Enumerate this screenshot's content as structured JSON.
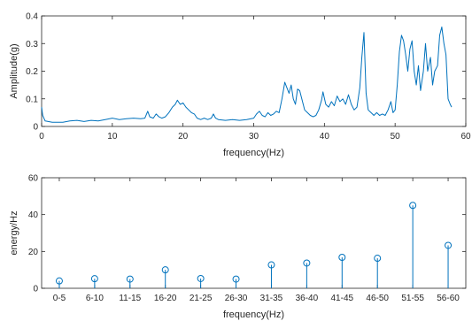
{
  "chart_data": [
    {
      "type": "line",
      "xlabel": "frequency(Hz)",
      "ylabel": "Amplitude(g)",
      "xlim": [
        0,
        60
      ],
      "ylim": [
        0,
        0.4
      ],
      "xticks": [
        0,
        10,
        20,
        30,
        40,
        50,
        60
      ],
      "yticks": [
        0,
        0.1,
        0.2,
        0.3,
        0.4
      ],
      "ytick_labels": [
        "0",
        "0.1",
        "0.2",
        "0.3",
        "0.4"
      ],
      "grid": false,
      "color": "#0072bd",
      "points": [
        [
          0.0,
          0.07
        ],
        [
          0.15,
          0.04
        ],
        [
          0.5,
          0.02
        ],
        [
          1.5,
          0.015
        ],
        [
          3,
          0.015
        ],
        [
          4,
          0.02
        ],
        [
          5,
          0.022
        ],
        [
          6,
          0.018
        ],
        [
          7,
          0.022
        ],
        [
          8,
          0.02
        ],
        [
          9,
          0.025
        ],
        [
          10,
          0.03
        ],
        [
          11,
          0.025
        ],
        [
          12,
          0.028
        ],
        [
          13,
          0.03
        ],
        [
          14,
          0.028
        ],
        [
          14.6,
          0.03
        ],
        [
          15.0,
          0.055
        ],
        [
          15.3,
          0.035
        ],
        [
          15.8,
          0.03
        ],
        [
          16.2,
          0.045
        ],
        [
          16.6,
          0.035
        ],
        [
          17.0,
          0.03
        ],
        [
          17.5,
          0.035
        ],
        [
          18.0,
          0.05
        ],
        [
          18.5,
          0.07
        ],
        [
          18.9,
          0.08
        ],
        [
          19.2,
          0.095
        ],
        [
          19.6,
          0.08
        ],
        [
          20.0,
          0.085
        ],
        [
          20.4,
          0.07
        ],
        [
          20.8,
          0.06
        ],
        [
          21.2,
          0.05
        ],
        [
          21.6,
          0.045
        ],
        [
          22.0,
          0.03
        ],
        [
          22.5,
          0.025
        ],
        [
          23.0,
          0.03
        ],
        [
          23.5,
          0.025
        ],
        [
          24.0,
          0.03
        ],
        [
          24.3,
          0.045
        ],
        [
          24.6,
          0.03
        ],
        [
          25.0,
          0.025
        ],
        [
          26.0,
          0.022
        ],
        [
          27.0,
          0.025
        ],
        [
          28.0,
          0.022
        ],
        [
          29.0,
          0.025
        ],
        [
          30.0,
          0.03
        ],
        [
          30.4,
          0.045
        ],
        [
          30.8,
          0.055
        ],
        [
          31.2,
          0.04
        ],
        [
          31.6,
          0.035
        ],
        [
          32.0,
          0.05
        ],
        [
          32.4,
          0.04
        ],
        [
          32.8,
          0.045
        ],
        [
          33.2,
          0.055
        ],
        [
          33.6,
          0.05
        ],
        [
          34.0,
          0.1
        ],
        [
          34.4,
          0.16
        ],
        [
          34.7,
          0.14
        ],
        [
          35.0,
          0.12
        ],
        [
          35.3,
          0.15
        ],
        [
          35.6,
          0.1
        ],
        [
          35.9,
          0.08
        ],
        [
          36.2,
          0.135
        ],
        [
          36.5,
          0.13
        ],
        [
          36.8,
          0.1
        ],
        [
          37.2,
          0.06
        ],
        [
          37.6,
          0.05
        ],
        [
          38.0,
          0.04
        ],
        [
          38.4,
          0.035
        ],
        [
          38.8,
          0.04
        ],
        [
          39.2,
          0.06
        ],
        [
          39.6,
          0.095
        ],
        [
          39.8,
          0.125
        ],
        [
          40.2,
          0.08
        ],
        [
          40.6,
          0.07
        ],
        [
          41.0,
          0.09
        ],
        [
          41.4,
          0.075
        ],
        [
          41.8,
          0.11
        ],
        [
          42.2,
          0.09
        ],
        [
          42.6,
          0.1
        ],
        [
          43.0,
          0.08
        ],
        [
          43.4,
          0.115
        ],
        [
          43.8,
          0.08
        ],
        [
          44.2,
          0.06
        ],
        [
          44.6,
          0.07
        ],
        [
          45.0,
          0.14
        ],
        [
          45.3,
          0.25
        ],
        [
          45.6,
          0.34
        ],
        [
          45.9,
          0.12
        ],
        [
          46.2,
          0.06
        ],
        [
          46.6,
          0.05
        ],
        [
          47.0,
          0.04
        ],
        [
          47.4,
          0.05
        ],
        [
          47.8,
          0.04
        ],
        [
          48.2,
          0.045
        ],
        [
          48.6,
          0.04
        ],
        [
          49.0,
          0.06
        ],
        [
          49.4,
          0.09
        ],
        [
          49.7,
          0.05
        ],
        [
          50.0,
          0.06
        ],
        [
          50.3,
          0.15
        ],
        [
          50.6,
          0.27
        ],
        [
          50.9,
          0.33
        ],
        [
          51.2,
          0.31
        ],
        [
          51.5,
          0.26
        ],
        [
          51.8,
          0.2
        ],
        [
          52.1,
          0.28
        ],
        [
          52.4,
          0.31
        ],
        [
          52.7,
          0.2
        ],
        [
          53.0,
          0.15
        ],
        [
          53.3,
          0.22
        ],
        [
          53.6,
          0.13
        ],
        [
          54.0,
          0.2
        ],
        [
          54.3,
          0.3
        ],
        [
          54.6,
          0.2
        ],
        [
          55.0,
          0.25
        ],
        [
          55.3,
          0.15
        ],
        [
          55.6,
          0.2
        ],
        [
          56.0,
          0.22
        ],
        [
          56.3,
          0.33
        ],
        [
          56.6,
          0.36
        ],
        [
          56.9,
          0.3
        ],
        [
          57.2,
          0.26
        ],
        [
          57.5,
          0.1
        ],
        [
          57.8,
          0.08
        ],
        [
          58.0,
          0.07
        ]
      ]
    },
    {
      "type": "stem",
      "xlabel": "frequency(Hz)",
      "ylabel": "energy/Hz",
      "ylim": [
        0,
        60
      ],
      "yticks": [
        0,
        20,
        40,
        60
      ],
      "grid": false,
      "color": "#0072bd",
      "categories": [
        "0-5",
        "6-10",
        "11-15",
        "16-20",
        "21-25",
        "26-30",
        "31-35",
        "36-40",
        "41-45",
        "46-50",
        "51-55",
        "56-60"
      ],
      "values": [
        4,
        5.2,
        5,
        10,
        5.3,
        5,
        12.7,
        13.7,
        16.8,
        16.3,
        45,
        23.3
      ]
    }
  ]
}
